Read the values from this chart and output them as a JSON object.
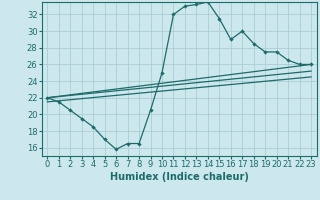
{
  "xlabel": "Humidex (Indice chaleur)",
  "background_color": "#cce8ec",
  "grid_color": "#aacdd4",
  "line_color": "#1e6b6b",
  "xlim": [
    -0.5,
    23.5
  ],
  "ylim": [
    15,
    33.5
  ],
  "xticks": [
    0,
    1,
    2,
    3,
    4,
    5,
    6,
    7,
    8,
    9,
    10,
    11,
    12,
    13,
    14,
    15,
    16,
    17,
    18,
    19,
    20,
    21,
    22,
    23
  ],
  "yticks": [
    16,
    18,
    20,
    22,
    24,
    26,
    28,
    30,
    32
  ],
  "line1_x": [
    0,
    1,
    2,
    3,
    4,
    5,
    6,
    7,
    8,
    9,
    10,
    11,
    12,
    13,
    14,
    15,
    16,
    17,
    18,
    19,
    20,
    21,
    22,
    23
  ],
  "line1_y": [
    22,
    21.5,
    20.5,
    19.5,
    18.5,
    17,
    15.8,
    16.5,
    16.5,
    20.5,
    25,
    32,
    33,
    33.2,
    33.5,
    31.5,
    29,
    30,
    28.5,
    27.5,
    27.5,
    26.5,
    26,
    26
  ],
  "line2_x": [
    0,
    23
  ],
  "line2_y": [
    22,
    26
  ],
  "line3_x": [
    0,
    23
  ],
  "line3_y": [
    22,
    25.2
  ],
  "line4_x": [
    0,
    23
  ],
  "line4_y": [
    21.5,
    24.5
  ],
  "xlabel_fontsize": 7,
  "tick_fontsize": 6
}
